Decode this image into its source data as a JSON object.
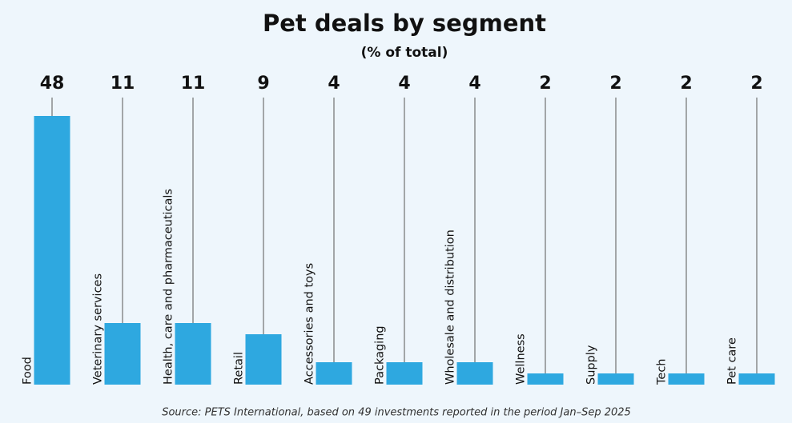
{
  "chart_data": {
    "type": "bar",
    "title": "Pet deals by segment",
    "subtitle": "(% of total)",
    "categories": [
      "Food",
      "Veterinary services",
      "Health, care and pharmaceuticals",
      "Retail",
      "Accessories and toys",
      "Packaging",
      "Wholesale and distribution",
      "Wellness",
      "Supply",
      "Tech",
      "Pet care"
    ],
    "values": [
      48,
      11,
      11,
      9,
      4,
      4,
      4,
      2,
      2,
      2,
      2
    ],
    "color": "#2ea8e0",
    "source": "Source: PETS International, based on 49 investments reported in the period Jan–Sep 2025"
  }
}
